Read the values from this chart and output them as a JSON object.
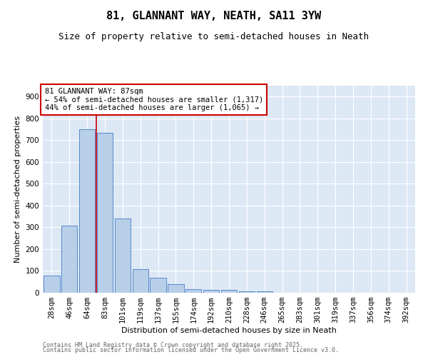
{
  "title": "81, GLANNANT WAY, NEATH, SA11 3YW",
  "subtitle": "Size of property relative to semi-detached houses in Neath",
  "xlabel": "Distribution of semi-detached houses by size in Neath",
  "ylabel": "Number of semi-detached properties",
  "categories": [
    "28sqm",
    "46sqm",
    "64sqm",
    "83sqm",
    "101sqm",
    "119sqm",
    "137sqm",
    "155sqm",
    "174sqm",
    "192sqm",
    "210sqm",
    "228sqm",
    "246sqm",
    "265sqm",
    "283sqm",
    "301sqm",
    "319sqm",
    "337sqm",
    "356sqm",
    "374sqm",
    "392sqm"
  ],
  "values": [
    80,
    307,
    750,
    735,
    340,
    108,
    68,
    38,
    15,
    12,
    12,
    8,
    8,
    0,
    0,
    0,
    0,
    0,
    0,
    0,
    0
  ],
  "bar_color": "#b8cfe8",
  "bar_edge_color": "#5588cc",
  "red_line_x": 2.5,
  "annotation_text": "81 GLANNANT WAY: 87sqm\n← 54% of semi-detached houses are smaller (1,317)\n44% of semi-detached houses are larger (1,065) →",
  "annotation_box_color": "#ffffff",
  "annotation_box_edge": "#cc0000",
  "footer_line1": "Contains HM Land Registry data © Crown copyright and database right 2025.",
  "footer_line2": "Contains public sector information licensed under the Open Government Licence v3.0.",
  "ylim": [
    0,
    950
  ],
  "yticks": [
    0,
    100,
    200,
    300,
    400,
    500,
    600,
    700,
    800,
    900
  ],
  "bg_color": "#dde8f5",
  "grid_color": "#ffffff",
  "title_fontsize": 11,
  "subtitle_fontsize": 9,
  "axis_label_fontsize": 8,
  "tick_fontsize": 7.5,
  "footer_fontsize": 6,
  "ann_fontsize": 7.5
}
